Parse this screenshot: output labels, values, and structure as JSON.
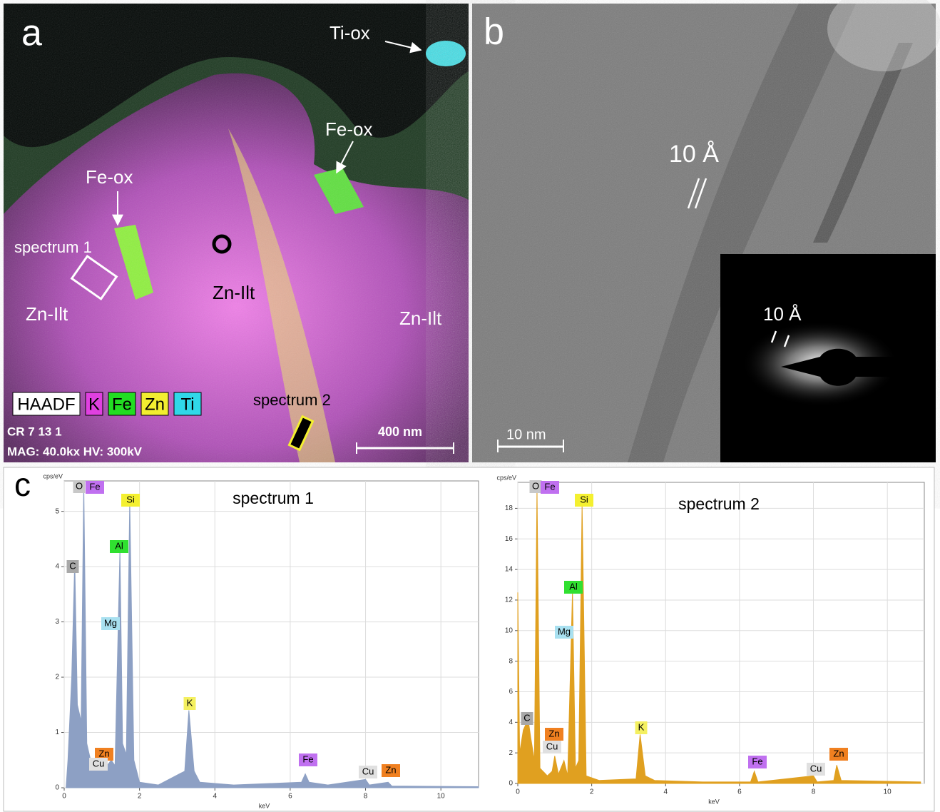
{
  "panel_a": {
    "label": "a",
    "ti_ox": "Ti-ox",
    "fe_ox_1": "Fe-ox",
    "fe_ox_2": "Fe-ox",
    "spectrum_1": "spectrum 1",
    "spectrum_2": "spectrum 2",
    "zn_ilt_1": "Zn-Ilt",
    "zn_ilt_2": "Zn-Ilt",
    "zn_ilt_3": "Zn-Ilt",
    "legend": [
      {
        "text": "HAADF",
        "color": "#ffffff"
      },
      {
        "text": "K",
        "color": "#e040e0"
      },
      {
        "text": "Fe",
        "color": "#22dd22"
      },
      {
        "text": "Zn",
        "color": "#f2ee30"
      },
      {
        "text": "Ti",
        "color": "#30d8e8"
      }
    ],
    "sample": "CR 7 13 1",
    "settings": "MAG: 40.0kx  HV: 300kV",
    "scale": "400 nm"
  },
  "panel_b": {
    "label": "b",
    "fringe": "10 Å",
    "diffraction": "10 Å",
    "scale": "10 nm"
  },
  "panel_c": {
    "label": "c"
  },
  "chart_data": [
    {
      "type": "area",
      "title": "spectrum 1",
      "y_label": "cps/eV",
      "x_label": "keV",
      "color": "#8da0c4",
      "x": [
        0.05,
        0.1,
        0.2,
        0.28,
        0.35,
        0.45,
        0.52,
        0.6,
        0.7,
        0.8,
        0.93,
        1.03,
        1.25,
        1.35,
        1.48,
        1.55,
        1.65,
        1.74,
        1.85,
        2.0,
        2.5,
        3.2,
        3.31,
        3.45,
        3.6,
        4.5,
        6.3,
        6.4,
        6.5,
        7.0,
        8.0,
        8.1,
        8.6,
        8.7,
        11
      ],
      "values": [
        0,
        0.5,
        2,
        4.1,
        1.5,
        1.2,
        5.5,
        0.8,
        0.5,
        0.3,
        0.4,
        0.3,
        0.5,
        0.4,
        4.3,
        0.8,
        0.6,
        5.2,
        0.5,
        0.1,
        0.05,
        0.3,
        1.4,
        0.3,
        0.1,
        0.05,
        0.1,
        0.25,
        0.1,
        0.05,
        0.15,
        0.05,
        0.1,
        0.03,
        0.02
      ],
      "xlim": [
        0,
        11
      ],
      "ylim": [
        0,
        5.55
      ],
      "xticks": [
        0,
        2,
        4,
        6,
        8,
        10
      ],
      "yticks": [
        0,
        1,
        2,
        3,
        4,
        5
      ],
      "grid": true,
      "peaks": [
        {
          "text": "O",
          "color": "#c8c8c8"
        },
        {
          "text": "Fe",
          "color": "#c070f0"
        },
        {
          "text": "Si",
          "color": "#f4f030"
        },
        {
          "text": "Al",
          "color": "#30e030"
        },
        {
          "text": "C",
          "color": "#a8a8a8"
        },
        {
          "text": "Mg",
          "color": "#a8e0f0"
        },
        {
          "text": "K",
          "color": "#f4f060"
        },
        {
          "text": "Zn",
          "color": "#f08020"
        },
        {
          "text": "Cu",
          "color": "#e0e0e0"
        },
        {
          "text": "Fe",
          "color": "#c070f0"
        },
        {
          "text": "Cu",
          "color": "#e0e0e0"
        },
        {
          "text": "Zn",
          "color": "#f08020"
        }
      ]
    },
    {
      "type": "area",
      "title": "spectrum 2",
      "y_label": "cps/eV",
      "x_label": "keV",
      "color": "#e0a020",
      "x": [
        0,
        0.05,
        0.15,
        0.28,
        0.35,
        0.45,
        0.52,
        0.6,
        0.8,
        0.93,
        1.0,
        1.1,
        1.25,
        1.35,
        1.48,
        1.56,
        1.65,
        1.74,
        1.85,
        2.2,
        3.2,
        3.31,
        3.45,
        3.7,
        5,
        6.3,
        6.4,
        6.5,
        8.0,
        8.1,
        8.55,
        8.63,
        8.75,
        10.9
      ],
      "values": [
        12.5,
        2,
        3.5,
        4.2,
        3,
        1.5,
        19.2,
        1,
        0.5,
        0.8,
        1.8,
        0.6,
        1.5,
        0.5,
        12.5,
        1,
        1.5,
        18.2,
        0.5,
        0.2,
        0.3,
        3.2,
        0.5,
        0.2,
        0.1,
        0.1,
        0.8,
        0.1,
        0.5,
        0.1,
        0.2,
        1.2,
        0.2,
        0.1
      ],
      "xlim": [
        0,
        11
      ],
      "ylim": [
        0,
        19.7
      ],
      "xticks": [
        0,
        2,
        4,
        6,
        8,
        10
      ],
      "yticks": [
        0,
        2,
        4,
        6,
        8,
        10,
        12,
        14,
        16,
        18
      ],
      "grid": true,
      "peaks": [
        {
          "text": "O",
          "color": "#c8c8c8"
        },
        {
          "text": "Fe",
          "color": "#c070f0"
        },
        {
          "text": "Si",
          "color": "#f4f030"
        },
        {
          "text": "Al",
          "color": "#30e030"
        },
        {
          "text": "Mg",
          "color": "#a8e0f0"
        },
        {
          "text": "C",
          "color": "#a8a8a8"
        },
        {
          "text": "Zn",
          "color": "#f08020"
        },
        {
          "text": "Cu",
          "color": "#e0e0e0"
        },
        {
          "text": "K",
          "color": "#f4f060"
        },
        {
          "text": "Fe",
          "color": "#c070f0"
        },
        {
          "text": "Cu",
          "color": "#e0e0e0"
        },
        {
          "text": "Zn",
          "color": "#f08020"
        }
      ]
    }
  ]
}
